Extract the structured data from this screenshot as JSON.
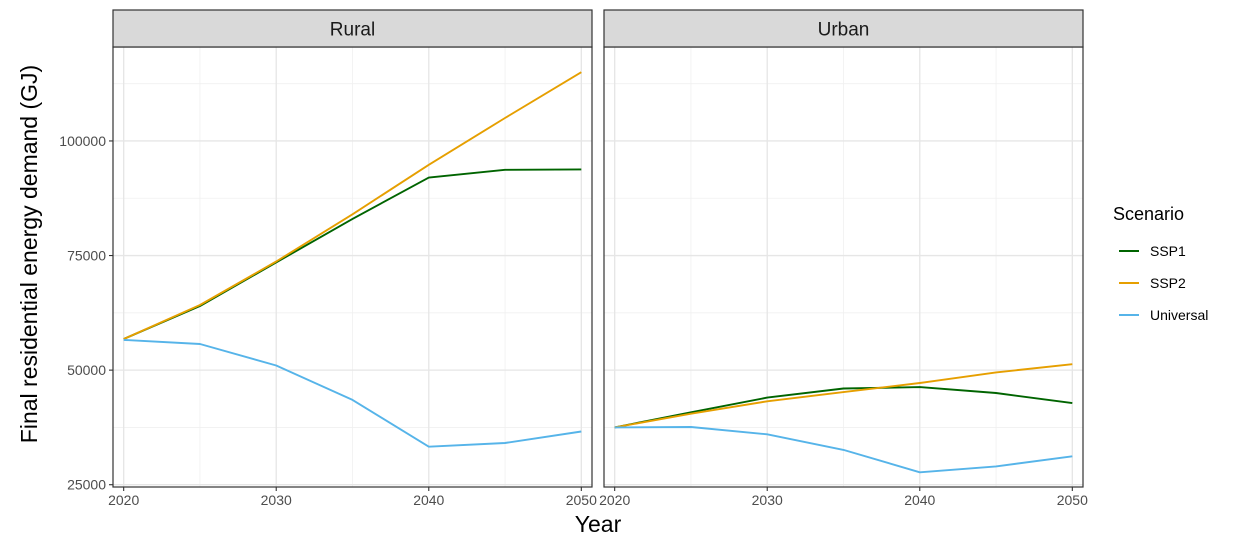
{
  "chart_data": {
    "type": "line",
    "xlabel": "Year",
    "ylabel": "Final residential energy demand (GJ)",
    "x": [
      2020,
      2025,
      2030,
      2035,
      2040,
      2045,
      2050
    ],
    "x_ticks": [
      2020,
      2030,
      2040,
      2050
    ],
    "xlim": [
      2019.3,
      2050.7
    ],
    "y_ticks": [
      25000,
      50000,
      75000,
      100000
    ],
    "y_tick_labels": [
      "25000",
      "50000",
      "75000",
      "100000"
    ],
    "ylim": [
      24500,
      120500
    ],
    "grid": true,
    "legend": {
      "title": "Scenario",
      "placement": "right",
      "entries": [
        {
          "name": "SSP1",
          "color": "#006400"
        },
        {
          "name": "SSP2",
          "color": "#E69F00"
        },
        {
          "name": "Universal",
          "color": "#56B4E9"
        }
      ]
    },
    "panels": [
      {
        "title": "Rural",
        "series": [
          {
            "name": "SSP1",
            "color": "#006400",
            "values": [
              56800,
              64000,
              73500,
              83000,
              92000,
              93700,
              93800
            ]
          },
          {
            "name": "SSP2",
            "color": "#E69F00",
            "values": [
              56800,
              64200,
              73700,
              84000,
              94800,
              105000,
              115000
            ]
          },
          {
            "name": "Universal",
            "color": "#56B4E9",
            "values": [
              56600,
              55700,
              51000,
              43500,
              33300,
              34100,
              36600
            ]
          }
        ]
      },
      {
        "title": "Urban",
        "series": [
          {
            "name": "SSP1",
            "color": "#006400",
            "values": [
              37500,
              40800,
              44000,
              46000,
              46300,
              45000,
              42800
            ]
          },
          {
            "name": "SSP2",
            "color": "#E69F00",
            "values": [
              37500,
              40500,
              43200,
              45200,
              47200,
              49500,
              51300
            ]
          },
          {
            "name": "Universal",
            "color": "#56B4E9",
            "values": [
              37500,
              37600,
              36000,
              32600,
              27700,
              29000,
              31200
            ]
          }
        ]
      }
    ]
  }
}
